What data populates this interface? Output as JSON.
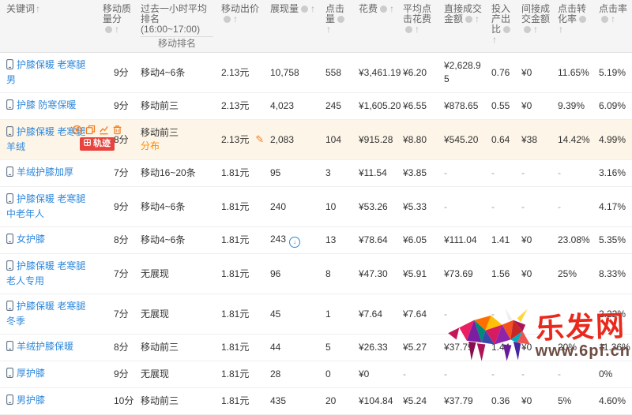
{
  "header": {
    "columns": [
      {
        "key": "keyword",
        "label": "关键词",
        "arrow": true,
        "info": false
      },
      {
        "key": "quality",
        "label": "移动质量分",
        "arrow": true,
        "info": true,
        "icons_below": true
      },
      {
        "key": "rank",
        "label": "过去一小时平均排名(16:00~17:00)",
        "sublabel": "移动排名"
      },
      {
        "key": "bid",
        "label": "移动出价",
        "arrow": true,
        "info": true
      },
      {
        "key": "impressions",
        "label": "展现量",
        "arrow": true,
        "info": true
      },
      {
        "key": "clicks",
        "label": "点击量",
        "arrow": true,
        "info": true
      },
      {
        "key": "cost",
        "label": "花费",
        "arrow": true,
        "info": true
      },
      {
        "key": "avg_cost",
        "label": "平均点击花费",
        "arrow": true,
        "info": true
      },
      {
        "key": "direct",
        "label": "直接成交金额",
        "arrow": true,
        "info": true
      },
      {
        "key": "roi",
        "label": "投入产出比",
        "arrow": true,
        "info": true
      },
      {
        "key": "indirect",
        "label": "间接成交金额",
        "arrow": true,
        "info": true
      },
      {
        "key": "cvr",
        "label": "点击转化率",
        "arrow": true,
        "info": true
      },
      {
        "key": "ctr",
        "label": "点击率",
        "arrow": true,
        "info": true
      }
    ]
  },
  "rows": [
    {
      "keyword": "护膝保暖 老寒腿男",
      "quality": "9分",
      "rank": "移动4~6条",
      "bid": "2.13元",
      "impressions": "10,758",
      "clicks": "558",
      "cost": "¥3,461.19",
      "avg_cost": "¥6.20",
      "direct": "¥2,628.95",
      "roi": "0.76",
      "indirect": "¥0",
      "cvr": "11.65%",
      "ctr": "5.19%"
    },
    {
      "keyword": "护膝 防寒保暖",
      "quality": "9分",
      "rank": "移动前三",
      "bid": "2.13元",
      "impressions": "4,023",
      "clicks": "245",
      "cost": "¥1,605.20",
      "avg_cost": "¥6.55",
      "direct": "¥878.65",
      "roi": "0.55",
      "indirect": "¥0",
      "cvr": "9.39%",
      "ctr": "6.09%"
    },
    {
      "keyword": "护膝保暖 老寒腿 羊绒",
      "quality": "8分",
      "rank": "移动前三",
      "rank_extra": "分布",
      "bid": "2.13元",
      "bid_editable": true,
      "impressions": "2,083",
      "clicks": "104",
      "cost": "¥915.28",
      "avg_cost": "¥8.80",
      "direct": "¥545.20",
      "roi": "0.64",
      "indirect": "¥38",
      "cvr": "14.42%",
      "ctr": "4.99%",
      "highlight": true,
      "tools": {
        "icons": [
          "target-icon",
          "copy-icon",
          "trend-icon",
          "delete-icon"
        ],
        "badge_label": "轨迹"
      }
    },
    {
      "keyword": "羊绒护膝加厚",
      "quality": "7分",
      "rank": "移动16~20条",
      "bid": "1.81元",
      "impressions": "95",
      "clicks": "3",
      "cost": "¥11.54",
      "avg_cost": "¥3.85",
      "direct": "-",
      "roi": "-",
      "indirect": "-",
      "cvr": "-",
      "ctr": "3.16%"
    },
    {
      "keyword": "护膝保暖 老寒腿 中老年人",
      "quality": "9分",
      "rank": "移动4~6条",
      "bid": "1.81元",
      "impressions": "240",
      "clicks": "10",
      "cost": "¥53.26",
      "avg_cost": "¥5.33",
      "direct": "-",
      "roi": "-",
      "indirect": "-",
      "cvr": "-",
      "ctr": "4.17%"
    },
    {
      "keyword": "女护膝",
      "quality": "8分",
      "rank": "移动4~6条",
      "bid": "1.81元",
      "impressions": "243",
      "impressions_flag": true,
      "clicks": "13",
      "cost": "¥78.64",
      "avg_cost": "¥6.05",
      "direct": "¥111.04",
      "roi": "1.41",
      "indirect": "¥0",
      "cvr": "23.08%",
      "ctr": "5.35%"
    },
    {
      "keyword": "护膝保暖 老寒腿 老人专用",
      "quality": "7分",
      "rank": "无展现",
      "bid": "1.81元",
      "impressions": "96",
      "clicks": "8",
      "cost": "¥47.30",
      "avg_cost": "¥5.91",
      "direct": "¥73.69",
      "roi": "1.56",
      "indirect": "¥0",
      "cvr": "25%",
      "ctr": "8.33%"
    },
    {
      "keyword": "护膝保暖 老寒腿 冬季",
      "quality": "7分",
      "rank": "无展现",
      "bid": "1.81元",
      "impressions": "45",
      "clicks": "1",
      "cost": "¥7.64",
      "avg_cost": "¥7.64",
      "direct": "-",
      "roi": "-",
      "indirect": "-",
      "cvr": "-",
      "ctr": "2.22%"
    },
    {
      "keyword": "羊绒护膝保暖",
      "quality": "8分",
      "rank": "移动前三",
      "bid": "1.81元",
      "impressions": "44",
      "clicks": "5",
      "cost": "¥26.33",
      "avg_cost": "¥5.27",
      "direct": "¥37.79",
      "roi": "1.44",
      "indirect": "¥0",
      "cvr": "20%",
      "ctr": "11.36%"
    },
    {
      "keyword": "厚护膝",
      "quality": "9分",
      "rank": "无展现",
      "bid": "1.81元",
      "impressions": "28",
      "clicks": "0",
      "cost": "¥0",
      "avg_cost": "-",
      "direct": "-",
      "roi": "-",
      "indirect": "-",
      "cvr": "-",
      "ctr": "0%"
    },
    {
      "keyword": "男护膝",
      "quality": "10分",
      "rank": "移动前三",
      "bid": "1.81元",
      "impressions": "435",
      "clicks": "20",
      "cost": "¥104.84",
      "avg_cost": "¥5.24",
      "direct": "¥37.79",
      "roi": "0.36",
      "indirect": "¥0",
      "cvr": "5%",
      "ctr": "4.60%"
    }
  ],
  "watermark": {
    "site_name": "乐发网",
    "site_url": "www.6pf.cn"
  },
  "colors": {
    "keyword_link": "#3089dc",
    "highlight_row": "#fdf5e7",
    "badge_red": "#e8433e",
    "tool_icon_orange": "#f57c1f",
    "rank_extra_orange": "#ff8a00",
    "watermark_red": "#e8291c"
  }
}
